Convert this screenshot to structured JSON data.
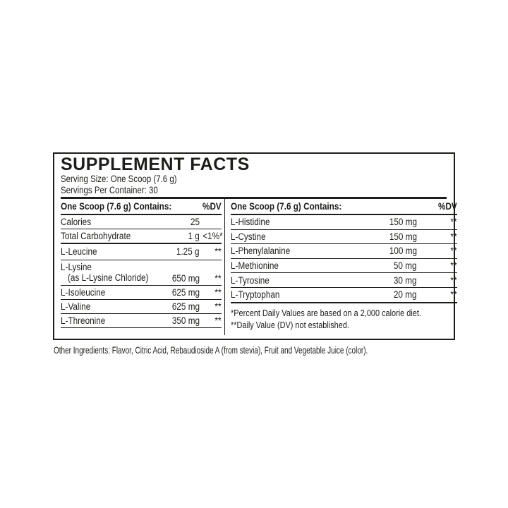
{
  "panel": {
    "title": "SUPPLEMENT FACTS",
    "serving_size": "Serving Size: One Scoop (7.6 g)",
    "servings_per_container": "Servings Per Container: 30"
  },
  "left_table": {
    "header": "One Scoop (7.6 g) Contains:",
    "dv_header": "%DV",
    "rows": [
      {
        "name": "Calories",
        "amount": "25",
        "dv": ""
      },
      {
        "name": "Total Carbohydrate",
        "amount": "1 g",
        "dv": "<1%*"
      },
      {
        "name": "L-Leucine",
        "amount": "1.25 g",
        "dv": "**"
      },
      {
        "name": "L-Lysine",
        "sub": "(as L-Lysine Chloride)",
        "amount": "650 mg",
        "dv": "**"
      },
      {
        "name": "L-Isoleucine",
        "amount": "625 mg",
        "dv": "**"
      },
      {
        "name": "L-Valine",
        "amount": "625 mg",
        "dv": "**"
      },
      {
        "name": "L-Threonine",
        "amount": "350 mg",
        "dv": "**"
      }
    ]
  },
  "right_table": {
    "header": "One Scoop (7.6 g) Contains:",
    "dv_header": "%DV",
    "rows": [
      {
        "name": "L-Histidine",
        "amount": "150 mg",
        "dv": "**"
      },
      {
        "name": "L-Cystine",
        "amount": "150 mg",
        "dv": "**"
      },
      {
        "name": "L-Phenylalanine",
        "amount": "100 mg",
        "dv": "**"
      },
      {
        "name": "L-Methionine",
        "amount": "50 mg",
        "dv": "**"
      },
      {
        "name": "L-Tyrosine",
        "amount": "30 mg",
        "dv": "**"
      },
      {
        "name": "L-Tryptophan",
        "amount": "20 mg",
        "dv": "**"
      }
    ],
    "footnotes": [
      "*Percent Daily Values are based on a 2,000 calorie diet.",
      "**Daily Value (DV) not established."
    ]
  },
  "other_ingredients": "Other Ingredients: Flavor, Citric Acid, Rebaudioside A (from stevia), Fruit and Vegetable Juice (color).",
  "colors": {
    "text": "#1d1d1b",
    "border": "#1d1d1b",
    "background": "#ffffff"
  }
}
